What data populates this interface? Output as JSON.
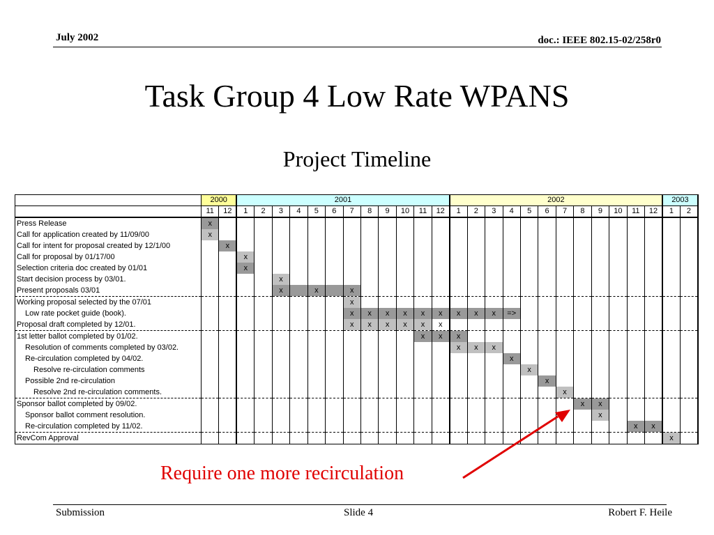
{
  "header": {
    "date": "July 2002",
    "doc": "doc.: IEEE 802.15-02/258r0"
  },
  "title": "Task Group 4 Low Rate WPANS",
  "subtitle": "Project Timeline",
  "colors": {
    "y2000": "#ffff99",
    "y2001": "#ccffff",
    "y2002": "#ffffcc",
    "y2003": "#ccffff",
    "bar_dark": "#999999",
    "bar_light": "#c0c0c0",
    "callout": "#e00000"
  },
  "years": [
    {
      "label": "2000",
      "span": 2,
      "cls": "y2000"
    },
    {
      "label": "2001",
      "span": 12,
      "cls": "y2001"
    },
    {
      "label": "2002",
      "span": 12,
      "cls": "y2002"
    },
    {
      "label": "2003",
      "span": 2,
      "cls": "y2003"
    }
  ],
  "months": [
    "11",
    "12",
    "1",
    "2",
    "3",
    "4",
    "5",
    "6",
    "7",
    "8",
    "9",
    "10",
    "11",
    "12",
    "1",
    "2",
    "3",
    "4",
    "5",
    "6",
    "7",
    "8",
    "9",
    "10",
    "11",
    "12",
    "1",
    "2"
  ],
  "tasks": [
    {
      "label": "Press Release",
      "indent": 0,
      "marks": {
        "0": "x"
      },
      "shade": {
        "0": "g1"
      }
    },
    {
      "label": "Call for application created by 11/09/00",
      "indent": 0,
      "marks": {
        "0": "x"
      },
      "shade": {
        "0": "g2"
      }
    },
    {
      "label": "Call for intent for proposal created  by 12/1/00",
      "indent": 0,
      "marks": {
        "1": "x"
      },
      "shade": {
        "1": "g1"
      }
    },
    {
      "label": "Call for proposal by 01/17/00",
      "indent": 0,
      "marks": {
        "2": "x"
      },
      "shade": {
        "2": "g2"
      }
    },
    {
      "label": "Selection criteria doc created by 01/01",
      "indent": 0,
      "marks": {
        "2": "x"
      },
      "shade": {
        "2": "g1"
      }
    },
    {
      "label": "Start decision process by 03/01.",
      "indent": 0,
      "marks": {
        "4": "x"
      },
      "shade": {
        "4": "g2"
      }
    },
    {
      "label": "Present proposals 03/01",
      "indent": 0,
      "marks": {
        "4": "x",
        "6": "x",
        "8": "x"
      },
      "shade": {
        "4": "g1",
        "5": "g1",
        "6": "g1",
        "7": "g1",
        "8": "g1"
      }
    },
    {
      "label": "Working proposal selected by the 07/01",
      "indent": 0,
      "dash": true,
      "marks": {
        "8": "x"
      },
      "shade": {
        "8": "g2"
      }
    },
    {
      "label": "Low rate pocket guide (book).",
      "indent": 1,
      "marks": {
        "8": "x",
        "9": "x",
        "10": "x",
        "11": "x",
        "12": "x",
        "13": "x",
        "14": "x",
        "15": "x",
        "16": "x",
        "17": "=>"
      },
      "shade": {
        "8": "g1",
        "9": "g1",
        "10": "g1",
        "11": "g1",
        "12": "g1",
        "13": "g1",
        "14": "g1",
        "15": "g1",
        "16": "g1",
        "17": "g1"
      }
    },
    {
      "label": "Proposal draft completed by 12/01.",
      "indent": 0,
      "marks": {
        "8": "x",
        "9": "x",
        "10": "x",
        "11": "x",
        "12": "x",
        "13": "x"
      },
      "shade": {
        "8": "g2",
        "9": "g2",
        "10": "g2",
        "11": "g2",
        "12": "g2"
      }
    },
    {
      "label": "1st letter ballot completed by 01/02.",
      "indent": 0,
      "dash": true,
      "marks": {
        "12": "x",
        "13": "x",
        "14": "x"
      },
      "shade": {
        "12": "g1",
        "13": "g1",
        "14": "g1"
      }
    },
    {
      "label": "Resolution of comments completed by 03/02.",
      "indent": 1,
      "marks": {
        "14": "x",
        "15": "x",
        "16": "x"
      },
      "shade": {
        "14": "g2",
        "15": "g2",
        "16": "g2"
      }
    },
    {
      "label": "Re-circulation completed by 04/02.",
      "indent": 1,
      "marks": {
        "17": "x"
      },
      "shade": {
        "17": "g1"
      }
    },
    {
      "label": "Resolve re-circulation comments",
      "indent": 2,
      "marks": {
        "18": "x"
      },
      "shade": {
        "18": "g2"
      }
    },
    {
      "label": "Possible 2nd re-circulation",
      "indent": 1,
      "marks": {
        "19": "x"
      },
      "shade": {
        "19": "g1"
      }
    },
    {
      "label": "Resolve 2nd re-circulation comments.",
      "indent": 2,
      "marks": {
        "20": "x"
      },
      "shade": {
        "20": "g2"
      }
    },
    {
      "label": "Sponsor ballot completed by 09/02.",
      "indent": 0,
      "dash": true,
      "marks": {
        "21": "x",
        "22": "x"
      },
      "shade": {
        "21": "g1",
        "22": "g1"
      }
    },
    {
      "label": "Sponsor ballot comment resolution.",
      "indent": 1,
      "marks": {
        "22": "x"
      },
      "shade": {
        "22": "g2"
      }
    },
    {
      "label": "Re-circulation completed by 11/02.",
      "indent": 1,
      "marks": {
        "24": "x",
        "25": "x"
      },
      "shade": {
        "24": "g1",
        "25": "g1"
      }
    },
    {
      "label": "RevCom Approval",
      "indent": 0,
      "dash": true,
      "marks": {
        "26": "x"
      },
      "shade": {
        "26": "g2"
      }
    }
  ],
  "callout": "Require one more recirculation",
  "footer": {
    "left": "Submission",
    "middle": "Slide 4",
    "right": "Robert F. Heile"
  }
}
